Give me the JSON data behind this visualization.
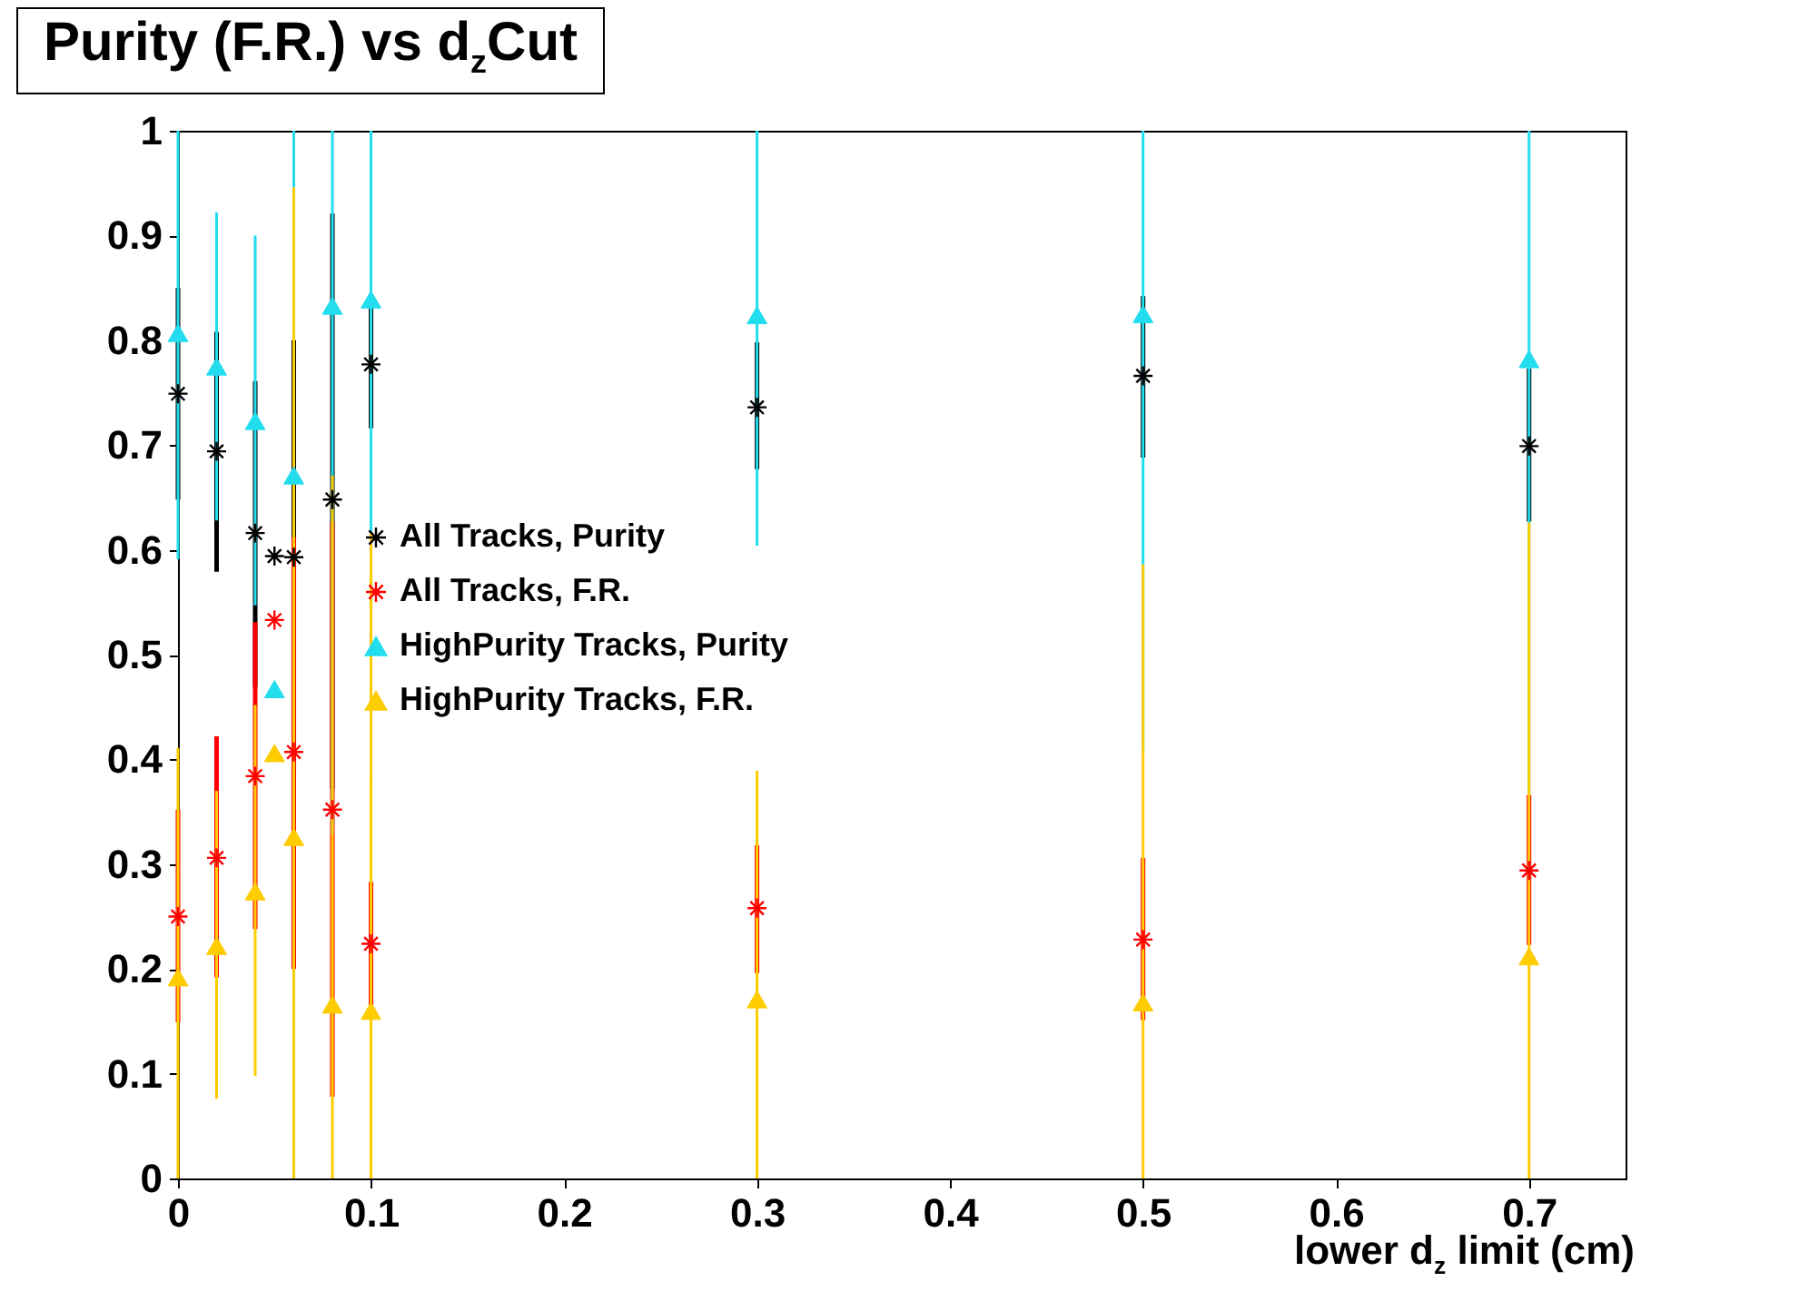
{
  "chart_data": {
    "type": "scatter",
    "title": "Purity (F.R.) vs d$_{z}$Cut",
    "xlabel": "lower d$_{z}$ limit (cm)",
    "x": [
      0,
      0.02,
      0.04,
      0.05,
      0.06,
      0.08,
      0.1,
      0.3,
      0.5,
      0.7
    ],
    "xlim": [
      0,
      0.75
    ],
    "xticks": [
      0,
      0.1,
      0.2,
      0.3,
      0.4,
      0.5,
      0.6,
      0.7
    ],
    "ylim": [
      0,
      1
    ],
    "yticks": [
      0,
      0.1,
      0.2,
      0.3,
      0.4,
      0.5,
      0.6,
      0.7,
      0.8,
      0.9,
      1
    ],
    "legend": "left",
    "series": [
      {
        "name": "All Tracks, Purity",
        "color": "#000000",
        "marker": "cross",
        "values": [
          0.749,
          0.694,
          0.616,
          0.594,
          0.593,
          0.648,
          0.777,
          0.736,
          0.766,
          0.699
        ],
        "errors": [
          [
            0.648,
            0.85
          ],
          [
            0.579,
            0.808
          ],
          [
            0.469,
            0.761
          ],
          null,
          [
            0.388,
            0.8
          ],
          [
            0.372,
            0.921
          ],
          [
            0.716,
            0.834
          ],
          [
            0.677,
            0.798
          ],
          [
            0.688,
            0.842
          ],
          [
            0.627,
            0.773
          ]
        ]
      },
      {
        "name": "All Tracks, F.R.",
        "color": "#ff0000",
        "marker": "cross",
        "values": [
          0.25,
          0.306,
          0.384,
          0.533,
          0.407,
          0.352,
          0.224,
          0.258,
          0.228,
          0.294
        ],
        "errors": [
          [
            0.149,
            0.352
          ],
          [
            0.192,
            0.422
          ],
          [
            0.238,
            0.531
          ],
          null,
          [
            0.2,
            0.612
          ],
          [
            0.078,
            0.627
          ],
          [
            0.164,
            0.283
          ],
          [
            0.196,
            0.318
          ],
          [
            0.151,
            0.306
          ],
          [
            0.223,
            0.366
          ]
        ]
      },
      {
        "name": "HighPurity Tracks, Purity",
        "color": "#22ddee",
        "marker": "triangle",
        "values": [
          0.807,
          0.775,
          0.723,
          0.467,
          0.671,
          0.833,
          0.839,
          0.824,
          0.825,
          0.782
        ],
        "errors": [
          [
            0.591,
            1
          ],
          [
            0.628,
            0.922
          ],
          [
            0.547,
            0.9
          ],
          null,
          [
            0.053,
            1
          ],
          [
            0.328,
            1
          ],
          [
            0.382,
            1
          ],
          [
            0.604,
            1
          ],
          [
            0.408,
            1
          ],
          [
            0.368,
            1
          ]
        ]
      },
      {
        "name": "HighPurity Tracks, F.R.",
        "color": "#ffcc00",
        "marker": "triangle",
        "values": [
          0.192,
          0.222,
          0.274,
          0.406,
          0.326,
          0.166,
          0.16,
          0.171,
          0.168,
          0.212
        ],
        "errors": [
          [
            0,
            0.411
          ],
          [
            0.076,
            0.37
          ],
          [
            0.098,
            0.452
          ],
          null,
          [
            0,
            0.946
          ],
          [
            0,
            0.671
          ],
          [
            0,
            0.616
          ],
          [
            0,
            0.389
          ],
          [
            0,
            0.586
          ],
          [
            0,
            0.626
          ]
        ]
      }
    ]
  }
}
